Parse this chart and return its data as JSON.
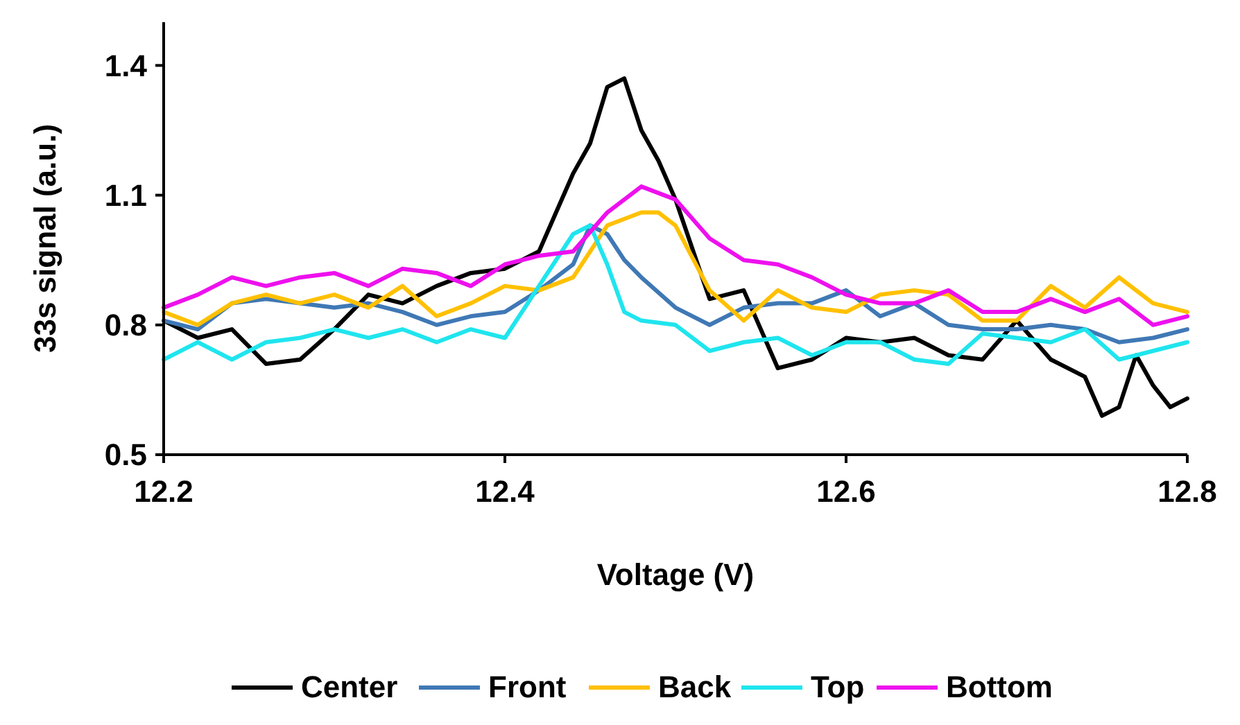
{
  "chart_data": {
    "type": "line",
    "xlabel": "Voltage (V)",
    "ylabel": "33s signal (a.u.)",
    "xlim": [
      12.2,
      12.8
    ],
    "xticks": [
      12.2,
      12.4,
      12.6,
      12.8
    ],
    "ylim": [
      0.5,
      1.5
    ],
    "yticks": [
      0.5,
      0.8,
      1.1,
      1.4
    ],
    "grid": false,
    "legend": "bottom",
    "line_style": "solid",
    "series": [
      {
        "name": "Center",
        "color": "#000000",
        "x": [
          12.2,
          12.22,
          12.24,
          12.26,
          12.28,
          12.3,
          12.32,
          12.34,
          12.36,
          12.38,
          12.4,
          12.42,
          12.43,
          12.44,
          12.45,
          12.46,
          12.47,
          12.48,
          12.49,
          12.5,
          12.52,
          12.54,
          12.56,
          12.58,
          12.6,
          12.62,
          12.64,
          12.66,
          12.68,
          12.7,
          12.72,
          12.74,
          12.75,
          12.76,
          12.77,
          12.78,
          12.79,
          12.8
        ],
        "values": [
          0.81,
          0.77,
          0.79,
          0.71,
          0.72,
          0.79,
          0.87,
          0.85,
          0.89,
          0.92,
          0.93,
          0.97,
          1.06,
          1.15,
          1.22,
          1.35,
          1.37,
          1.25,
          1.18,
          1.09,
          0.86,
          0.88,
          0.7,
          0.72,
          0.77,
          0.76,
          0.77,
          0.73,
          0.72,
          0.81,
          0.72,
          0.68,
          0.59,
          0.61,
          0.73,
          0.66,
          0.61,
          0.63
        ]
      },
      {
        "name": "Front",
        "color": "#3f78b5",
        "x": [
          12.2,
          12.22,
          12.24,
          12.26,
          12.28,
          12.3,
          12.32,
          12.34,
          12.36,
          12.38,
          12.4,
          12.42,
          12.44,
          12.45,
          12.46,
          12.47,
          12.48,
          12.5,
          12.52,
          12.54,
          12.56,
          12.58,
          12.6,
          12.62,
          12.64,
          12.66,
          12.68,
          12.7,
          12.72,
          12.74,
          12.76,
          12.78,
          12.8
        ],
        "values": [
          0.81,
          0.79,
          0.85,
          0.86,
          0.85,
          0.84,
          0.85,
          0.83,
          0.8,
          0.82,
          0.83,
          0.88,
          0.94,
          1.03,
          1.01,
          0.95,
          0.91,
          0.84,
          0.8,
          0.84,
          0.85,
          0.85,
          0.88,
          0.82,
          0.85,
          0.8,
          0.79,
          0.79,
          0.8,
          0.79,
          0.76,
          0.77,
          0.79
        ]
      },
      {
        "name": "Back",
        "color": "#ffc000",
        "x": [
          12.2,
          12.22,
          12.24,
          12.26,
          12.28,
          12.3,
          12.32,
          12.34,
          12.36,
          12.38,
          12.4,
          12.42,
          12.44,
          12.46,
          12.48,
          12.49,
          12.5,
          12.52,
          12.54,
          12.56,
          12.58,
          12.6,
          12.62,
          12.64,
          12.66,
          12.68,
          12.7,
          12.72,
          12.74,
          12.76,
          12.78,
          12.8
        ],
        "values": [
          0.83,
          0.8,
          0.85,
          0.87,
          0.85,
          0.87,
          0.84,
          0.89,
          0.82,
          0.85,
          0.89,
          0.88,
          0.91,
          1.03,
          1.06,
          1.06,
          1.03,
          0.88,
          0.81,
          0.88,
          0.84,
          0.83,
          0.87,
          0.88,
          0.87,
          0.81,
          0.81,
          0.89,
          0.84,
          0.91,
          0.85,
          0.83
        ]
      },
      {
        "name": "Top",
        "color": "#1fe5ee",
        "x": [
          12.2,
          12.22,
          12.24,
          12.26,
          12.28,
          12.3,
          12.32,
          12.34,
          12.36,
          12.38,
          12.4,
          12.42,
          12.44,
          12.45,
          12.46,
          12.47,
          12.48,
          12.5,
          12.52,
          12.54,
          12.56,
          12.58,
          12.6,
          12.62,
          12.64,
          12.66,
          12.68,
          12.7,
          12.72,
          12.74,
          12.76,
          12.78,
          12.8
        ],
        "values": [
          0.72,
          0.76,
          0.72,
          0.76,
          0.77,
          0.79,
          0.77,
          0.79,
          0.76,
          0.79,
          0.77,
          0.89,
          1.01,
          1.03,
          0.94,
          0.83,
          0.81,
          0.8,
          0.74,
          0.76,
          0.77,
          0.73,
          0.76,
          0.76,
          0.72,
          0.71,
          0.78,
          0.77,
          0.76,
          0.79,
          0.72,
          0.74,
          0.76
        ]
      },
      {
        "name": "Bottom",
        "color": "#ee10ee",
        "x": [
          12.2,
          12.22,
          12.24,
          12.26,
          12.28,
          12.3,
          12.32,
          12.34,
          12.36,
          12.38,
          12.4,
          12.42,
          12.44,
          12.46,
          12.48,
          12.5,
          12.52,
          12.54,
          12.56,
          12.58,
          12.6,
          12.62,
          12.64,
          12.66,
          12.68,
          12.7,
          12.72,
          12.74,
          12.76,
          12.78,
          12.8
        ],
        "values": [
          0.84,
          0.87,
          0.91,
          0.89,
          0.91,
          0.92,
          0.89,
          0.93,
          0.92,
          0.89,
          0.94,
          0.96,
          0.97,
          1.06,
          1.12,
          1.09,
          1.0,
          0.95,
          0.94,
          0.91,
          0.87,
          0.85,
          0.85,
          0.88,
          0.83,
          0.83,
          0.86,
          0.83,
          0.86,
          0.8,
          0.82
        ]
      }
    ]
  }
}
